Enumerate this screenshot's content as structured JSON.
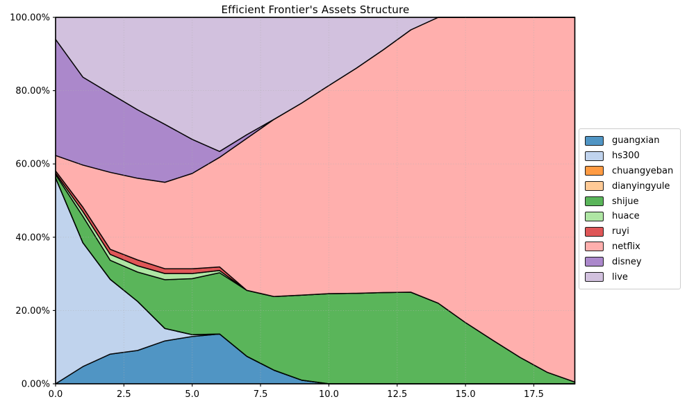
{
  "chart_data": {
    "type": "area",
    "stacked": true,
    "title": "Efficient Frontier's Assets Structure",
    "xlim": [
      0,
      19
    ],
    "ylim": [
      0,
      100
    ],
    "unit": "percent of portfolio",
    "grid": "dotted gridlines drawn above areas",
    "legend_position": "center-right, outside plot area",
    "edge_color": "#000000",
    "grid_color": "#b0b0b0",
    "x": [
      0,
      1,
      2,
      3,
      4,
      5,
      6,
      7,
      8,
      9,
      10,
      11,
      12,
      13,
      14,
      15,
      16,
      17,
      18,
      19
    ],
    "x_tick_values": [
      0,
      2.5,
      5,
      7.5,
      10,
      12.5,
      15,
      17.5
    ],
    "x_tick_labels": [
      "0.0",
      "2.5",
      "5.0",
      "7.5",
      "10.0",
      "12.5",
      "15.0",
      "17.5"
    ],
    "y_tick_values": [
      0,
      20,
      40,
      60,
      80,
      100
    ],
    "y_tick_labels": [
      "0.00%",
      "20.00%",
      "40.00%",
      "60.00%",
      "80.00%",
      "100.00%"
    ],
    "series": [
      {
        "name": "guangxian",
        "color": "#1f77b4",
        "values": [
          0,
          4.7,
          8.1,
          9.1,
          11.7,
          12.9,
          13.6,
          7.5,
          3.7,
          1.0,
          0,
          0,
          0,
          0,
          0,
          0,
          0,
          0,
          0,
          0
        ]
      },
      {
        "name": "hs300",
        "color": "#aec7e8",
        "values": [
          56.2,
          33.8,
          20.4,
          13.4,
          3.4,
          0.5,
          0,
          0,
          0,
          0,
          0,
          0,
          0,
          0,
          0,
          0,
          0,
          0,
          0,
          0
        ]
      },
      {
        "name": "chuangyeban",
        "color": "#ff7f0e",
        "values": [
          0,
          0,
          0,
          0,
          0,
          0,
          0,
          0,
          0,
          0,
          0,
          0,
          0,
          0,
          0,
          0,
          0,
          0,
          0,
          0
        ]
      },
      {
        "name": "dianyingyule",
        "color": "#ffbb78",
        "values": [
          0,
          0,
          0,
          0,
          0,
          0,
          0,
          0,
          0,
          0,
          0,
          0,
          0,
          0,
          0,
          0,
          0,
          0,
          0,
          0
        ]
      },
      {
        "name": "shijue",
        "color": "#2ca02c",
        "values": [
          0.9,
          7.2,
          5.2,
          8.0,
          13.3,
          15.3,
          16.7,
          18.0,
          20.1,
          23.2,
          24.6,
          24.7,
          24.9,
          25.0,
          22.0,
          16.7,
          11.9,
          7.2,
          3.1,
          0.5
        ]
      },
      {
        "name": "huace",
        "color": "#98df8a",
        "values": [
          0.4,
          1.3,
          1.6,
          1.7,
          1.7,
          1.4,
          0.6,
          0,
          0,
          0,
          0,
          0,
          0,
          0,
          0,
          0,
          0,
          0,
          0,
          0
        ]
      },
      {
        "name": "ruyi",
        "color": "#d62728",
        "values": [
          0.6,
          1.2,
          1.4,
          1.6,
          1.3,
          1.3,
          1.0,
          0,
          0,
          0,
          0,
          0,
          0,
          0,
          0,
          0,
          0,
          0,
          0,
          0
        ]
      },
      {
        "name": "netflix",
        "color": "#ff9896",
        "values": [
          4.2,
          11.5,
          21.0,
          22.3,
          23.6,
          26.0,
          29.9,
          41.5,
          48.4,
          52.4,
          56.8,
          61.4,
          66.3,
          71.6,
          78.0,
          83.3,
          88.1,
          92.8,
          96.9,
          99.5
        ]
      },
      {
        "name": "disney",
        "color": "#9467bd",
        "values": [
          31.7,
          24.0,
          21.5,
          18.7,
          15.8,
          9.3,
          1.6,
          1.0,
          0,
          0,
          0,
          0,
          0,
          0,
          0,
          0,
          0,
          0,
          0,
          0
        ]
      },
      {
        "name": "live",
        "color": "#c5b0d5",
        "values": [
          6.0,
          16.3,
          20.8,
          25.2,
          29.2,
          33.3,
          36.6,
          32.0,
          27.8,
          23.4,
          18.6,
          13.9,
          8.8,
          3.4,
          0,
          0,
          0,
          0,
          0,
          0
        ]
      }
    ]
  }
}
